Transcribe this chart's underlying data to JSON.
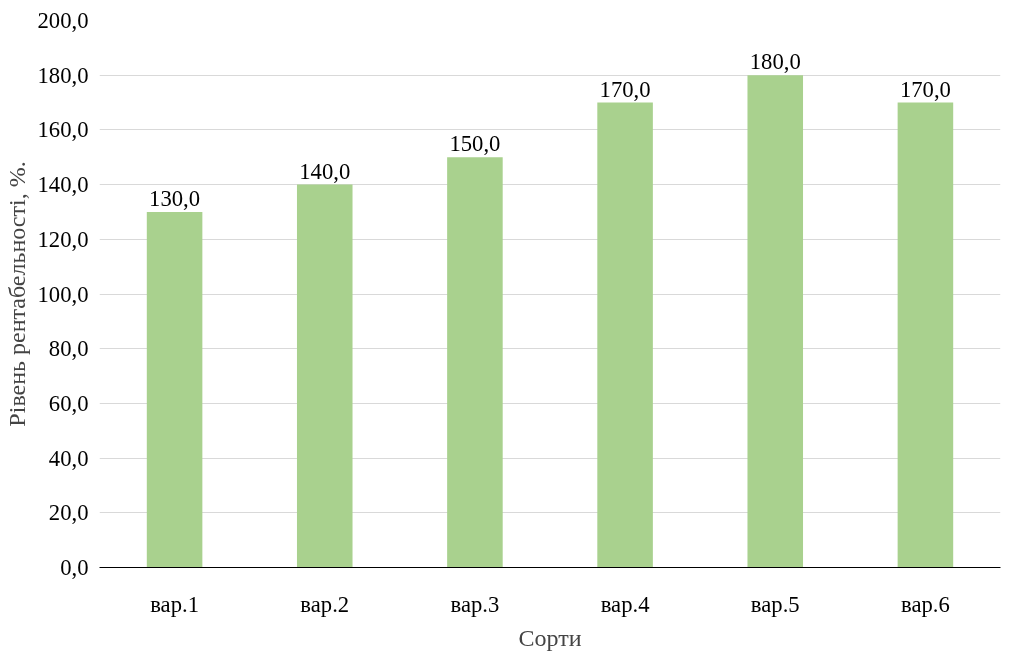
{
  "chart_data": {
    "type": "bar",
    "xlabel": "Сорти",
    "ylabel": "Рівень рентабельності, %.",
    "categories": [
      "вар.1",
      "вар.2",
      "вар.3",
      "вар.4",
      "вар.5",
      "вар.6"
    ],
    "values": [
      130,
      140,
      150,
      170,
      180,
      170
    ],
    "value_labels": [
      "130,0",
      "140,0",
      "150,0",
      "170,0",
      "180,0",
      "170,0"
    ],
    "color": "#a9d18e",
    "ylim": [
      0,
      200
    ],
    "yticks": [
      {
        "value": 0,
        "label": "0,0"
      },
      {
        "value": 20,
        "label": "20,0"
      },
      {
        "value": 40,
        "label": "40,0"
      },
      {
        "value": 60,
        "label": "60,0"
      },
      {
        "value": 80,
        "label": "80,0"
      },
      {
        "value": 100,
        "label": "100,0"
      },
      {
        "value": 120,
        "label": "120,0"
      },
      {
        "value": 140,
        "label": "140,0"
      },
      {
        "value": 160,
        "label": "160,0"
      },
      {
        "value": 180,
        "label": "180,0"
      },
      {
        "value": 200,
        "label": "200,0"
      }
    ],
    "grid": "y"
  }
}
